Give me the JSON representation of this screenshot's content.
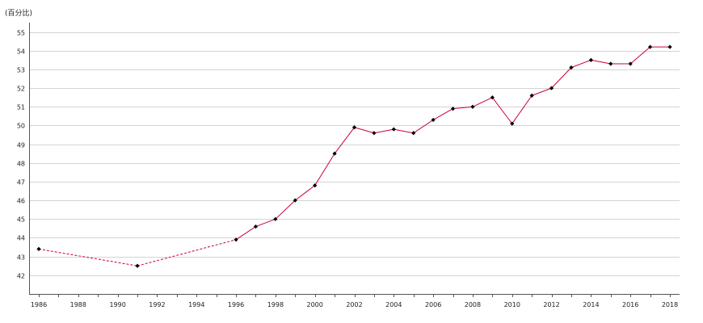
{
  "chart_data": {
    "type": "line",
    "unit_label": "(百分比)",
    "title": "",
    "xlabel": "",
    "ylabel": "",
    "line_color": "#cc0033",
    "marker_color": "#000000",
    "xlim": [
      1986,
      2018
    ],
    "ylim": [
      41,
      55.5
    ],
    "x_ticks": [
      1986,
      1988,
      1990,
      1992,
      1994,
      1996,
      1998,
      2000,
      2002,
      2004,
      2006,
      2008,
      2010,
      2012,
      2014,
      2016,
      2018
    ],
    "y_ticks": [
      42,
      43,
      44,
      45,
      46,
      47,
      48,
      49,
      50,
      51,
      52,
      53,
      54,
      55
    ],
    "grid": true,
    "series": [
      {
        "x": [
          1986,
          1991,
          1996,
          1997,
          1998,
          1999,
          2000,
          2001,
          2002,
          2003,
          2004,
          2005,
          2006,
          2007,
          2008,
          2009,
          2010,
          2011,
          2012,
          2013,
          2014,
          2015,
          2016,
          2017,
          2018
        ],
        "values": [
          43.4,
          42.5,
          43.9,
          44.6,
          45.0,
          46.0,
          46.8,
          48.5,
          49.9,
          49.6,
          49.8,
          49.6,
          50.3,
          50.9,
          51.0,
          51.5,
          50.1,
          51.6,
          52.0,
          53.1,
          53.5,
          53.3,
          53.3,
          54.2,
          54.2
        ],
        "dashed_until_x": 1996
      }
    ]
  }
}
